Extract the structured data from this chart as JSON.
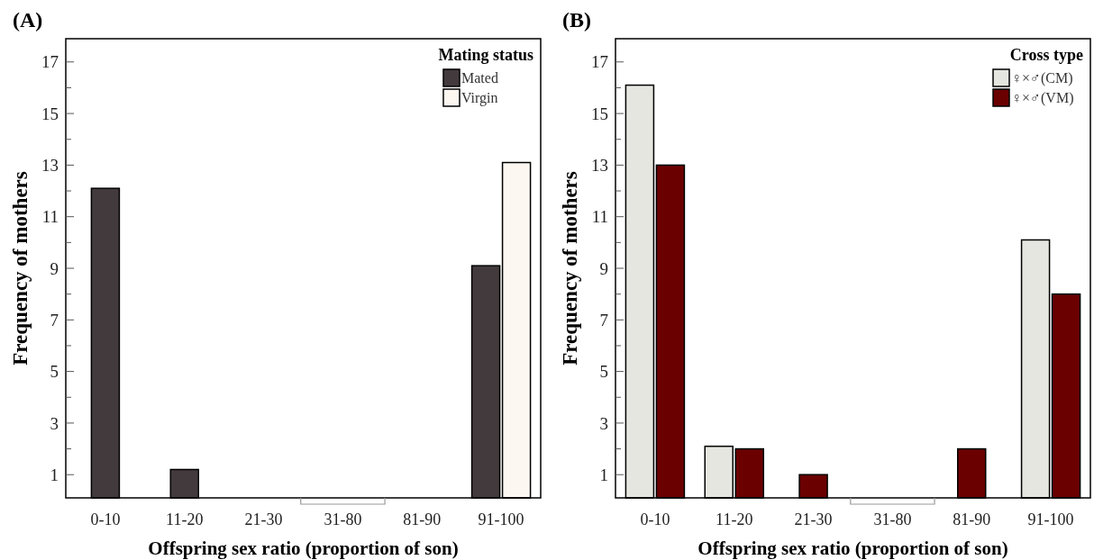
{
  "chart_data": [
    {
      "type": "bar",
      "title": "(A)",
      "xlabel": "Offspring sex ratio (proportion of son)",
      "ylabel": "Frequency of mothers",
      "legend_title": "Mating status",
      "legend": "top right",
      "categories": [
        "0-10",
        "11-20",
        "21-30",
        "31-80",
        "81-90",
        "91-100"
      ],
      "series": [
        {
          "name": "Mated",
          "color": "#433a3d",
          "values": [
            12.1,
            1.2,
            null,
            null,
            null,
            9.1
          ]
        },
        {
          "name": "Virgin",
          "color": "#fdf7f2",
          "values": [
            null,
            null,
            null,
            null,
            null,
            13.1
          ]
        }
      ],
      "ylim": [
        0.1,
        17.9
      ],
      "yticks": [
        1,
        {
          "value": 2,
          "label": null
        },
        3,
        {
          "value": 4,
          "label": null
        },
        5,
        {
          "value": 6,
          "label": null
        },
        7,
        {
          "value": 8,
          "label": null
        },
        9,
        {
          "value": 10,
          "label": null
        },
        11,
        {
          "value": 12,
          "label": null
        },
        13,
        {
          "value": 14,
          "label": null
        },
        15,
        {
          "value": 16,
          "label": null
        },
        17
      ],
      "grid": false
    },
    {
      "type": "bar",
      "title": "(B)",
      "xlabel": "Offspring sex ratio (proportion of son)",
      "ylabel": "Frequency of mothers",
      "legend_title": "Cross type",
      "legend": "top right",
      "categories": [
        "0-10",
        "11-20",
        "21-30",
        "31-80",
        "81-90",
        "91-100"
      ],
      "series": [
        {
          "name": "♀×♂(CM)",
          "color": "#e6e6e0",
          "values": [
            16.1,
            2.1,
            null,
            null,
            null,
            10.1
          ]
        },
        {
          "name": "♀×♂(VM)",
          "color": "#6b0000",
          "values": [
            13,
            2,
            1,
            null,
            2,
            8
          ]
        }
      ],
      "ylim": [
        0.1,
        17.9
      ],
      "yticks": [
        1,
        {
          "value": 2,
          "label": null
        },
        3,
        {
          "value": 4,
          "label": null
        },
        5,
        {
          "value": 6,
          "label": null
        },
        7,
        {
          "value": 8,
          "label": null
        },
        9,
        {
          "value": 10,
          "label": null
        },
        11,
        {
          "value": 12,
          "label": null
        },
        13,
        {
          "value": 14,
          "label": null
        },
        15,
        {
          "value": 16,
          "label": null
        },
        17
      ],
      "grid": false
    }
  ]
}
